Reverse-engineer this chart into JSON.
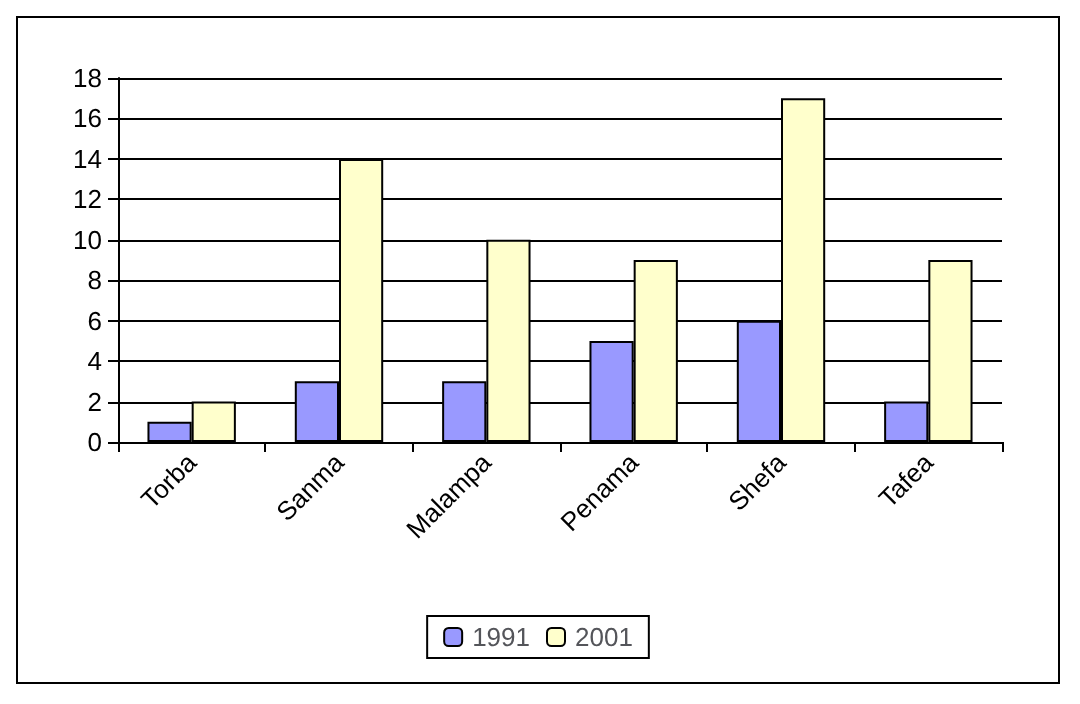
{
  "chart_data": {
    "type": "bar",
    "categories": [
      "Torba",
      "Sanma",
      "Malampa",
      "Penama",
      "Shefa",
      "Tafea"
    ],
    "series": [
      {
        "name": "1991",
        "color": "#9999ff",
        "values": [
          1,
          3,
          3,
          5,
          6,
          2
        ]
      },
      {
        "name": "2001",
        "color": "#ffffcc",
        "values": [
          2,
          14,
          10,
          9,
          17,
          9
        ]
      }
    ],
    "ylim": [
      0,
      18
    ],
    "yticks": [
      0,
      2,
      4,
      6,
      8,
      10,
      12,
      14,
      16,
      18
    ],
    "grid": "y",
    "legend": "bottom"
  }
}
